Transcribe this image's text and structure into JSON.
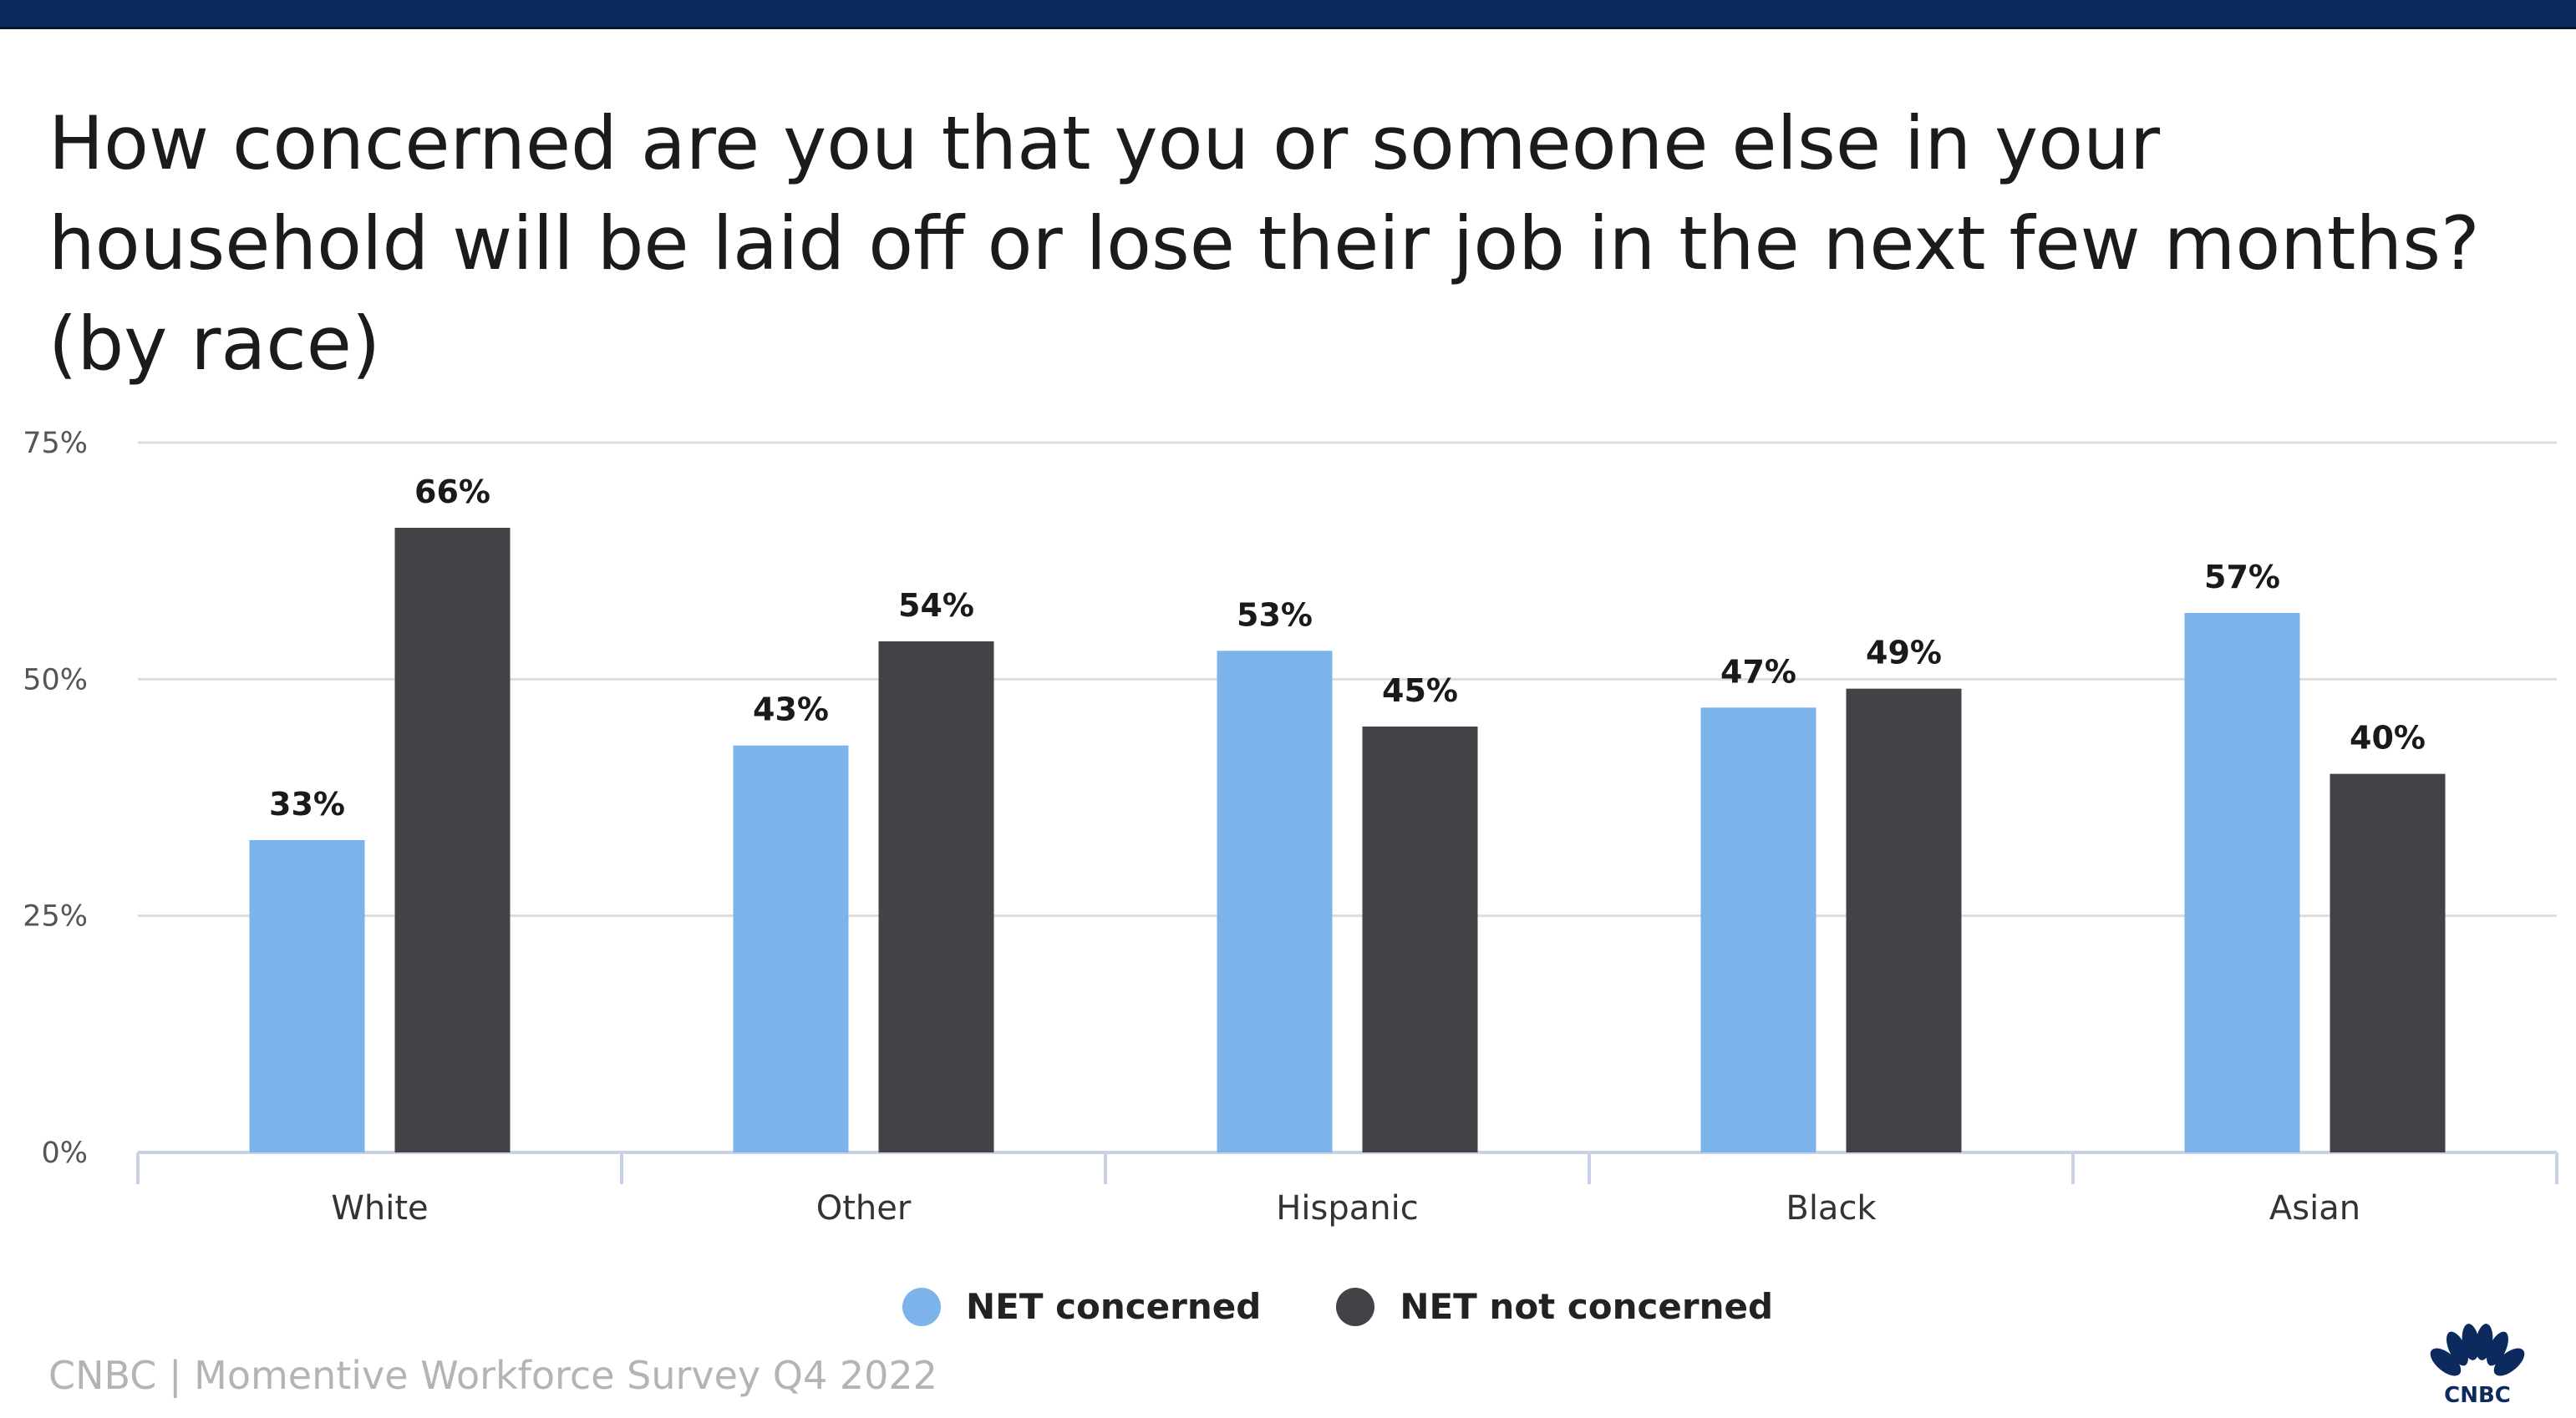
{
  "title": "How concerned are you that you or someone else in your household will be laid off or lose their job in the next few months? (by race)",
  "source": "CNBC | Momentive Workforce Survey Q4 2022",
  "logo": {
    "icon": "cnbc-peacock-icon",
    "text": "CNBC"
  },
  "colors": {
    "concerned": "#7cb3ea",
    "not_concerned": "#424247",
    "top_bar": "#0d2a5e"
  },
  "chart_data": {
    "type": "bar",
    "title": "How concerned are you that you or someone else in your household will be laid off or lose their job in the next few months? (by race)",
    "categories": [
      "White",
      "Other",
      "Hispanic",
      "Black",
      "Asian"
    ],
    "series": [
      {
        "name": "NET concerned",
        "values": [
          33,
          43,
          53,
          47,
          57
        ]
      },
      {
        "name": "NET not concerned",
        "values": [
          66,
          54,
          45,
          49,
          40
        ]
      }
    ],
    "yticks": [
      "0%",
      "25%",
      "50%",
      "75%"
    ],
    "ytick_values": [
      0,
      25,
      50,
      75
    ],
    "ylim": [
      0,
      75
    ],
    "unit": "%",
    "xlabel": "",
    "ylabel": "",
    "grid": true,
    "legend_position": "bottom"
  }
}
